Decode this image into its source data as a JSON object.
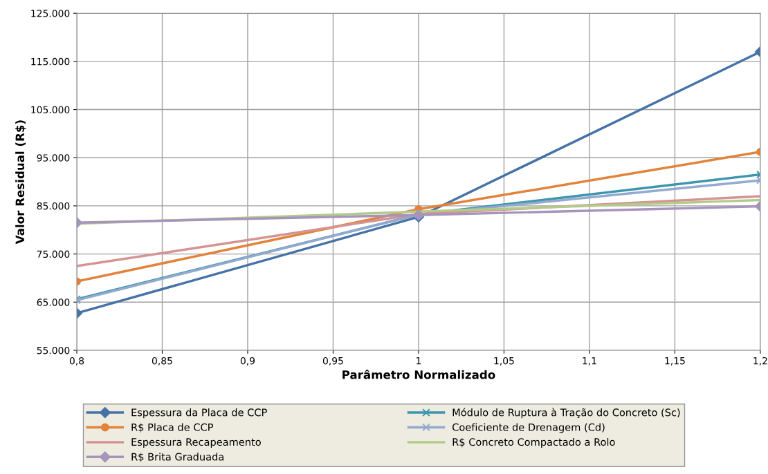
{
  "chart_data": {
    "type": "line",
    "xlabel": "Parâmetro Normalizado",
    "ylabel": "Valor Residual (R$)",
    "x": [
      0.8,
      1.0,
      1.2
    ],
    "series": [
      {
        "name": "Espessura da Placa de CCP",
        "color": "#4572a7",
        "marker": "diamond",
        "values": [
          62700,
          82700,
          117000
        ]
      },
      {
        "name": "Módulo de Ruptura à Tração do Concreto (Sc)",
        "color": "#3d96ae",
        "marker": "cross",
        "values": [
          65600,
          83200,
          91500
        ]
      },
      {
        "name": "R$ Placa de CCP",
        "color": "#e3823a",
        "marker": "circle",
        "values": [
          69300,
          84300,
          96200
        ]
      },
      {
        "name": "Coeficiente de Drenagem (Cd)",
        "color": "#93a9cf",
        "marker": "cross",
        "values": [
          65400,
          83200,
          90300
        ]
      },
      {
        "name": "Espessura Recapeamento",
        "color": "#d59392",
        "marker": "none",
        "values": [
          72500,
          83300,
          87000
        ]
      },
      {
        "name": "R$ Concreto Compactado a Rolo",
        "color": "#b3cb8a",
        "marker": "none",
        "values": [
          81300,
          83800,
          86200
        ]
      },
      {
        "name": "R$ Brita Graduada",
        "color": "#a694bd",
        "marker": "diamond",
        "values": [
          81500,
          83100,
          84900
        ]
      }
    ],
    "xlim": [
      0.8,
      1.2
    ],
    "xticks": [
      {
        "value": 0.8,
        "label": "0,8"
      },
      {
        "value": 0.85,
        "label": "0,85"
      },
      {
        "value": 0.9,
        "label": "0,9"
      },
      {
        "value": 0.95,
        "label": "0,95"
      },
      1,
      {
        "value": 1.05,
        "label": "1,05"
      },
      {
        "value": 1.1,
        "label": "1,1"
      },
      {
        "value": 1.15,
        "label": "1,15"
      },
      {
        "value": 1.2,
        "label": "1,2"
      }
    ],
    "ylim": [
      55000,
      125000
    ],
    "yticks": [
      {
        "value": 55000,
        "label": "55.000"
      },
      {
        "value": 65000,
        "label": "65.000"
      },
      {
        "value": 75000,
        "label": "75.000"
      },
      {
        "value": 85000,
        "label": "85.000"
      },
      {
        "value": 95000,
        "label": "95.000"
      },
      {
        "value": 105000,
        "label": "105.000"
      },
      {
        "value": 115000,
        "label": "115.000"
      },
      {
        "value": 125000,
        "label": "125.000"
      }
    ],
    "grid": true,
    "legend": "bottom",
    "line_style": "solid"
  }
}
